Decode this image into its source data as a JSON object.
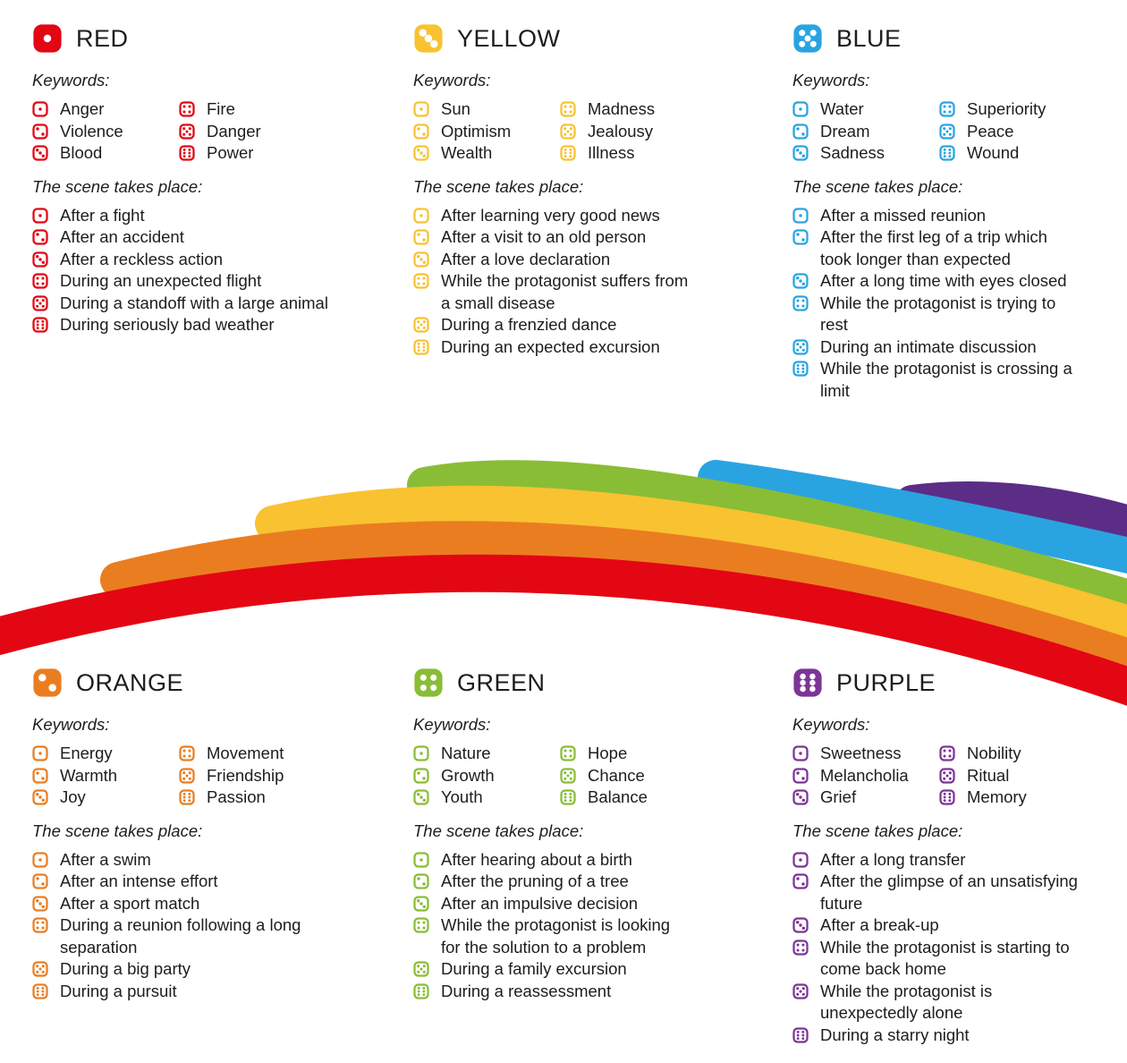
{
  "labels": {
    "keywords": "Keywords:",
    "scene": "The scene takes place:"
  },
  "text_color": "#1d1d1b",
  "background_color": "#ffffff",
  "sections": [
    {
      "id": "red",
      "title": "RED",
      "die": 1,
      "color": "#e30613",
      "keywords": [
        {
          "die": 1,
          "label": "Anger"
        },
        {
          "die": 2,
          "label": "Violence"
        },
        {
          "die": 3,
          "label": "Blood"
        },
        {
          "die": 4,
          "label": "Fire"
        },
        {
          "die": 5,
          "label": "Danger"
        },
        {
          "die": 6,
          "label": "Power"
        }
      ],
      "scenes": [
        {
          "die": 1,
          "text": "After a fight"
        },
        {
          "die": 2,
          "text": "After an accident"
        },
        {
          "die": 3,
          "text": "After a reckless action"
        },
        {
          "die": 4,
          "text": "During an unexpected flight"
        },
        {
          "die": 5,
          "text": "During a standoff with a large animal"
        },
        {
          "die": 6,
          "text": "During seriously bad weather"
        }
      ]
    },
    {
      "id": "yellow",
      "title": "YELLOW",
      "die": 3,
      "color": "#f8c231",
      "keywords": [
        {
          "die": 1,
          "label": "Sun"
        },
        {
          "die": 2,
          "label": "Optimism"
        },
        {
          "die": 3,
          "label": "Wealth"
        },
        {
          "die": 4,
          "label": "Madness"
        },
        {
          "die": 5,
          "label": "Jealousy"
        },
        {
          "die": 6,
          "label": "Illness"
        }
      ],
      "scenes": [
        {
          "die": 1,
          "text": "After learning very good news"
        },
        {
          "die": 2,
          "text": "After a visit to an old person"
        },
        {
          "die": 3,
          "text": "After a love declaration"
        },
        {
          "die": 4,
          "text": "While the protagonist suffers from a small disease"
        },
        {
          "die": 5,
          "text": "During a frenzied dance"
        },
        {
          "die": 6,
          "text": "During an expected excursion"
        }
      ]
    },
    {
      "id": "blue",
      "title": "BLUE",
      "die": 5,
      "color": "#29a4e1",
      "keywords": [
        {
          "die": 1,
          "label": "Water"
        },
        {
          "die": 2,
          "label": "Dream"
        },
        {
          "die": 3,
          "label": "Sadness"
        },
        {
          "die": 4,
          "label": "Superiority"
        },
        {
          "die": 5,
          "label": "Peace"
        },
        {
          "die": 6,
          "label": "Wound"
        }
      ],
      "scenes": [
        {
          "die": 1,
          "text": "After a missed reunion"
        },
        {
          "die": 2,
          "text": "After the first leg of a trip which took longer than expected"
        },
        {
          "die": 3,
          "text": "After a long time with eyes closed"
        },
        {
          "die": 4,
          "text": "While the protagonist is trying to rest"
        },
        {
          "die": 5,
          "text": "During an intimate discussion"
        },
        {
          "die": 6,
          "text": "While the protagonist is crossing a limit"
        }
      ]
    },
    {
      "id": "orange",
      "title": "ORANGE",
      "die": 2,
      "color": "#eb7d21",
      "keywords": [
        {
          "die": 1,
          "label": "Energy"
        },
        {
          "die": 2,
          "label": "Warmth"
        },
        {
          "die": 3,
          "label": "Joy"
        },
        {
          "die": 4,
          "label": "Movement"
        },
        {
          "die": 5,
          "label": "Friendship"
        },
        {
          "die": 6,
          "label": "Passion"
        }
      ],
      "scenes": [
        {
          "die": 1,
          "text": "After a swim"
        },
        {
          "die": 2,
          "text": "After an intense effort"
        },
        {
          "die": 3,
          "text": "After a sport match"
        },
        {
          "die": 4,
          "text": "During a reunion following a long separation"
        },
        {
          "die": 5,
          "text": "During a big party"
        },
        {
          "die": 6,
          "text": "During a pursuit"
        }
      ]
    },
    {
      "id": "green",
      "title": "GREEN",
      "die": 4,
      "color": "#89bd35",
      "keywords": [
        {
          "die": 1,
          "label": "Nature"
        },
        {
          "die": 2,
          "label": "Growth"
        },
        {
          "die": 3,
          "label": "Youth"
        },
        {
          "die": 4,
          "label": "Hope"
        },
        {
          "die": 5,
          "label": "Chance"
        },
        {
          "die": 6,
          "label": "Balance"
        }
      ],
      "scenes": [
        {
          "die": 1,
          "text": "After hearing about a birth"
        },
        {
          "die": 2,
          "text": "After the pruning of a tree"
        },
        {
          "die": 3,
          "text": "After an impulsive decision"
        },
        {
          "die": 4,
          "text": "While the protagonist is looking for the solution to a problem"
        },
        {
          "die": 5,
          "text": "During a family excursion"
        },
        {
          "die": 6,
          "text": "During a reassessment"
        }
      ]
    },
    {
      "id": "purple",
      "title": "PURPLE",
      "die": 6,
      "color": "#7c3596",
      "keywords": [
        {
          "die": 1,
          "label": "Sweetness"
        },
        {
          "die": 2,
          "label": "Melancholia"
        },
        {
          "die": 3,
          "label": "Grief"
        },
        {
          "die": 4,
          "label": "Nobility"
        },
        {
          "die": 5,
          "label": "Ritual"
        },
        {
          "die": 6,
          "label": "Memory"
        }
      ],
      "scenes": [
        {
          "die": 1,
          "text": "After a long transfer"
        },
        {
          "die": 2,
          "text": "After the glimpse of an unsatisfying future"
        },
        {
          "die": 3,
          "text": "After a break-up"
        },
        {
          "die": 4,
          "text": "While the protagonist is starting to come back home"
        },
        {
          "die": 5,
          "text": "While the protagonist is unexpectedly alone"
        },
        {
          "die": 6,
          "text": "During a starry night"
        }
      ]
    }
  ],
  "rainbow": {
    "stripe_colors": [
      "#e30613",
      "#eb7d21",
      "#f8c231",
      "#89bd35",
      "#29a4e1",
      "#5c2d87"
    ]
  }
}
